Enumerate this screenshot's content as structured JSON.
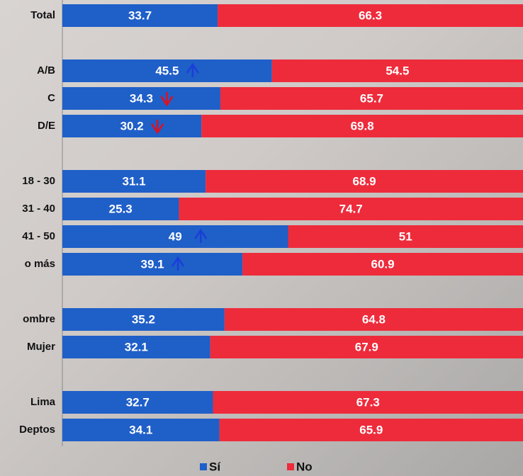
{
  "chart_data": {
    "type": "stacked_bar_horizontal",
    "categories": [
      "Total",
      null,
      "A/B",
      "C",
      "D/E",
      null,
      "18 - 30",
      "31 - 40",
      "41 - 50",
      "o más",
      null,
      "ombre",
      "Mujer",
      null,
      "Lima",
      "Deptos"
    ],
    "series": [
      {
        "name": "Sí",
        "color": "#1f5fc8",
        "values": [
          33.7,
          null,
          45.5,
          34.3,
          30.2,
          null,
          31.1,
          25.3,
          49,
          39.1,
          null,
          35.2,
          32.1,
          null,
          32.7,
          34.1
        ]
      },
      {
        "name": "No",
        "color": "#ee2b3b",
        "values": [
          66.3,
          null,
          54.5,
          65.7,
          69.8,
          null,
          68.9,
          74.7,
          51,
          60.9,
          null,
          64.8,
          67.9,
          null,
          67.3,
          65.9
        ]
      }
    ],
    "markers": [
      null,
      null,
      "up",
      "down",
      "down",
      null,
      null,
      null,
      "up",
      "up",
      null,
      null,
      null,
      null,
      null,
      null
    ],
    "xlim": [
      0,
      100
    ]
  }
}
